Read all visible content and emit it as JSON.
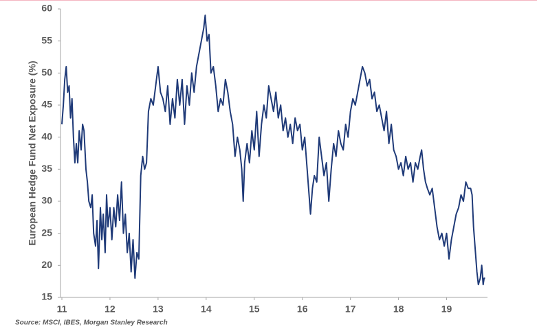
{
  "chart_data": {
    "type": "line",
    "y_axis_label": "European Hedge Fund Net Exposure (%)",
    "source": "Source: MSCI, IBES, Morgan Stanley Research",
    "xlim": [
      11,
      19.85
    ],
    "xticks": [
      11,
      12,
      13,
      14,
      15,
      16,
      17,
      18,
      19
    ],
    "ylim": [
      15,
      60
    ],
    "yticks": [
      15,
      20,
      25,
      30,
      35,
      40,
      45,
      50,
      55,
      60
    ],
    "grid": false,
    "series": [
      {
        "color": "#1f3a78",
        "x": [
          11.0,
          11.03,
          11.06,
          11.09,
          11.12,
          11.15,
          11.18,
          11.21,
          11.24,
          11.27,
          11.3,
          11.33,
          11.36,
          11.4,
          11.43,
          11.46,
          11.5,
          11.53,
          11.56,
          11.6,
          11.63,
          11.66,
          11.7,
          11.73,
          11.76,
          11.8,
          11.83,
          11.86,
          11.9,
          11.93,
          11.96,
          12.0,
          12.04,
          12.08,
          12.12,
          12.16,
          12.2,
          12.24,
          12.28,
          12.32,
          12.36,
          12.4,
          12.44,
          12.48,
          12.52,
          12.56,
          12.6,
          12.64,
          12.68,
          12.72,
          12.76,
          12.8,
          12.85,
          12.9,
          12.95,
          13.0,
          13.05,
          13.1,
          13.15,
          13.2,
          13.25,
          13.3,
          13.35,
          13.4,
          13.45,
          13.5,
          13.55,
          13.6,
          13.65,
          13.7,
          13.75,
          13.8,
          13.85,
          13.9,
          13.95,
          13.98,
          14.02,
          14.06,
          14.1,
          14.15,
          14.2,
          14.25,
          14.3,
          14.35,
          14.4,
          14.45,
          14.5,
          14.55,
          14.6,
          14.65,
          14.7,
          14.74,
          14.77,
          14.8,
          14.85,
          14.9,
          14.95,
          15.0,
          15.05,
          15.1,
          15.15,
          15.2,
          15.25,
          15.3,
          15.35,
          15.4,
          15.45,
          15.5,
          15.55,
          15.6,
          15.65,
          15.7,
          15.75,
          15.8,
          15.85,
          15.9,
          15.95,
          16.0,
          16.05,
          16.1,
          16.14,
          16.17,
          16.21,
          16.25,
          16.3,
          16.35,
          16.4,
          16.45,
          16.5,
          16.55,
          16.6,
          16.65,
          16.7,
          16.75,
          16.8,
          16.85,
          16.9,
          16.95,
          17.0,
          17.05,
          17.1,
          17.15,
          17.2,
          17.25,
          17.3,
          17.35,
          17.4,
          17.45,
          17.5,
          17.55,
          17.6,
          17.65,
          17.7,
          17.75,
          17.8,
          17.85,
          17.9,
          17.95,
          18.0,
          18.05,
          18.1,
          18.15,
          18.2,
          18.25,
          18.3,
          18.35,
          18.4,
          18.45,
          18.48,
          18.52,
          18.56,
          18.6,
          18.65,
          18.7,
          18.75,
          18.8,
          18.85,
          18.9,
          18.95,
          19.0,
          19.05,
          19.1,
          19.15,
          19.2,
          19.25,
          19.3,
          19.35,
          19.4,
          19.45,
          19.5,
          19.53,
          19.56,
          19.6,
          19.63,
          19.66,
          19.7,
          19.73,
          19.76,
          19.78,
          19.8
        ],
        "values": [
          42,
          45,
          49,
          51,
          47,
          48,
          43,
          46,
          40,
          36,
          39,
          36,
          41,
          38,
          42,
          41,
          35,
          33,
          30,
          29,
          31,
          25,
          23,
          27,
          19.5,
          29,
          24,
          28,
          22,
          31,
          26,
          29,
          24,
          29,
          26,
          31,
          27,
          33,
          25,
          28,
          22,
          25,
          19,
          24,
          18,
          22,
          21,
          34,
          37,
          35,
          36,
          44,
          46,
          45,
          48,
          51,
          47,
          46,
          44,
          48,
          42,
          46,
          43,
          49,
          45,
          49,
          42,
          48,
          45,
          50,
          47,
          51,
          53,
          55,
          57,
          59,
          55,
          56,
          50,
          51,
          48,
          44,
          46,
          45,
          49,
          47,
          44,
          42,
          37,
          40,
          38,
          35,
          30,
          36,
          39,
          36,
          41,
          38,
          44,
          37,
          42,
          45,
          43,
          48,
          46,
          44,
          47,
          43,
          45,
          41,
          43,
          40,
          42,
          39,
          43,
          41,
          42,
          38,
          40,
          35,
          31,
          28,
          32,
          34,
          33,
          40,
          37,
          34,
          36,
          30,
          35,
          39,
          37,
          41,
          39,
          38,
          42,
          40,
          44,
          46,
          45,
          47,
          49,
          51,
          50,
          48,
          49,
          46,
          47,
          44,
          45,
          43,
          41,
          44,
          39,
          42,
          38,
          37,
          35,
          36,
          34,
          37,
          35,
          36,
          33,
          36,
          35,
          37,
          38,
          35,
          33,
          32,
          31,
          32,
          29,
          26,
          24,
          25,
          23,
          25,
          21,
          24,
          26,
          28,
          29,
          31,
          30,
          33,
          32,
          32,
          31,
          26,
          22,
          19,
          17,
          18,
          20,
          17,
          18,
          18
        ]
      }
    ]
  }
}
